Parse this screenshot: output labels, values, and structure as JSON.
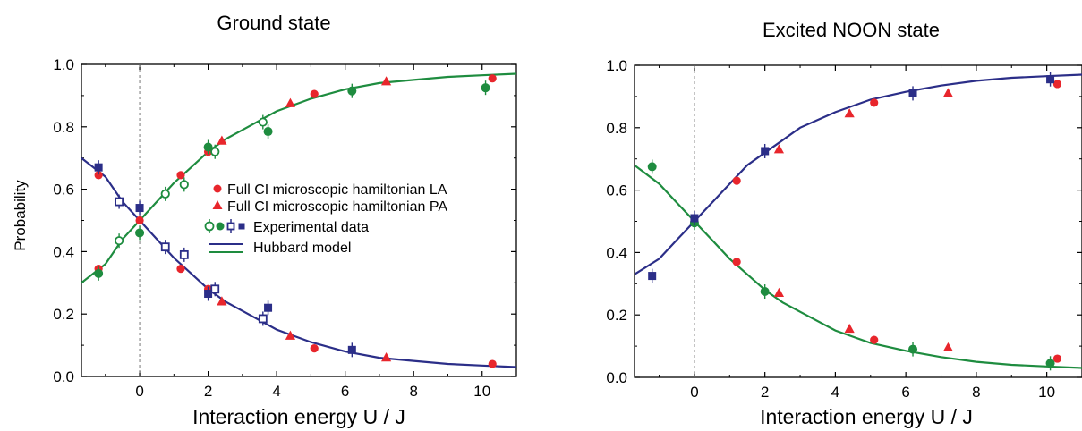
{
  "chart_data": [
    {
      "type": "scatter",
      "title": "Ground state",
      "xlabel": "Interaction energy U / J",
      "ylabel": "Probability",
      "xlim": [
        -1.7,
        11
      ],
      "ylim": [
        0,
        1
      ],
      "x_ticks": [
        "0",
        "2",
        "4",
        "6",
        "8",
        "10"
      ],
      "y_ticks": [
        "0.0",
        "0.2",
        "0.4",
        "0.6",
        "0.8",
        "1.0"
      ],
      "zero_reference_line": true,
      "legend_placement": "center-right",
      "legend": {
        "la": "Full CI microscopic hamiltonian LA",
        "pa": "Full CI microscopic hamiltonian PA",
        "exp": "Experimental data",
        "hub": "Hubbard model"
      },
      "series": [
        {
          "kind": "curve",
          "color": "#2b2e88",
          "role": "decreasing",
          "x": [
            -1.7,
            -1,
            -0.5,
            0,
            0.5,
            1,
            1.5,
            2,
            2.5,
            3,
            4,
            5,
            6,
            7,
            8,
            9,
            10,
            11
          ],
          "y": [
            0.7,
            0.64,
            0.56,
            0.5,
            0.44,
            0.38,
            0.33,
            0.28,
            0.24,
            0.21,
            0.15,
            0.11,
            0.08,
            0.06,
            0.05,
            0.04,
            0.035,
            0.03
          ]
        },
        {
          "kind": "curve",
          "color": "#1e8c3f",
          "role": "increasing",
          "x": [
            -1.7,
            -1,
            -0.5,
            0,
            0.5,
            1,
            1.5,
            2,
            2.5,
            3,
            4,
            5,
            6,
            7,
            8,
            9,
            10,
            11
          ],
          "y": [
            0.3,
            0.36,
            0.44,
            0.5,
            0.56,
            0.62,
            0.67,
            0.72,
            0.76,
            0.79,
            0.85,
            0.89,
            0.92,
            0.94,
            0.95,
            0.96,
            0.965,
            0.97
          ]
        },
        {
          "kind": "markers",
          "marker": "circle",
          "color": "#e8262c",
          "x": [
            -1.2,
            0,
            1.2,
            2,
            5.1,
            10.3
          ],
          "y": [
            0.345,
            0.5,
            0.645,
            0.72,
            0.905,
            0.955
          ]
        },
        {
          "kind": "markers",
          "marker": "circle",
          "color": "#e8262c",
          "x": [
            -1.2,
            1.2,
            2,
            5.1,
            10.3
          ],
          "y": [
            0.645,
            0.345,
            0.28,
            0.09,
            0.04
          ]
        },
        {
          "kind": "markers",
          "marker": "triangle",
          "color": "#e8262c",
          "x": [
            2.4,
            4.4,
            7.2
          ],
          "y": [
            0.755,
            0.875,
            0.945
          ]
        },
        {
          "kind": "markers",
          "marker": "triangle",
          "color": "#e8262c",
          "x": [
            2.4,
            4.4,
            7.2
          ],
          "y": [
            0.24,
            0.13,
            0.06
          ]
        },
        {
          "kind": "markers",
          "marker": "circle-open",
          "color": "#1e8c3f",
          "x": [
            -0.6,
            0.75,
            1.3,
            2.2,
            3.6
          ],
          "y": [
            0.435,
            0.585,
            0.615,
            0.72,
            0.815
          ]
        },
        {
          "kind": "markers",
          "marker": "circle-filled",
          "color": "#1e8c3f",
          "x": [
            -1.2,
            0,
            2,
            3.75,
            6.2,
            10.1
          ],
          "y": [
            0.33,
            0.46,
            0.735,
            0.785,
            0.915,
            0.925
          ]
        },
        {
          "kind": "markers",
          "marker": "square-open",
          "color": "#2b2e88",
          "x": [
            -0.6,
            0.75,
            1.3,
            2.2,
            3.6
          ],
          "y": [
            0.56,
            0.415,
            0.39,
            0.28,
            0.185
          ]
        },
        {
          "kind": "markers",
          "marker": "square-filled",
          "color": "#2b2e88",
          "x": [
            -1.2,
            0,
            2,
            3.75,
            6.2
          ],
          "y": [
            0.67,
            0.54,
            0.265,
            0.22,
            0.085
          ]
        }
      ]
    },
    {
      "type": "scatter",
      "title": "Excited NOON state",
      "xlabel": "Interaction energy U / J",
      "ylabel": "",
      "xlim": [
        -1.7,
        11
      ],
      "ylim": [
        0,
        1
      ],
      "x_ticks": [
        "0",
        "2",
        "4",
        "6",
        "8",
        "10"
      ],
      "y_ticks": [
        "0.0",
        "0.2",
        "0.4",
        "0.6",
        "0.8",
        "1.0"
      ],
      "zero_reference_line": true,
      "series": [
        {
          "kind": "curve",
          "color": "#2b2e88",
          "role": "increasing",
          "x": [
            -1.7,
            -1,
            -0.5,
            0,
            0.5,
            1,
            1.5,
            2,
            2.5,
            3,
            4,
            5,
            6,
            7,
            8,
            9,
            10,
            11
          ],
          "y": [
            0.33,
            0.38,
            0.44,
            0.5,
            0.56,
            0.62,
            0.68,
            0.72,
            0.76,
            0.8,
            0.85,
            0.89,
            0.915,
            0.935,
            0.95,
            0.96,
            0.965,
            0.97
          ]
        },
        {
          "kind": "curve",
          "color": "#1e8c3f",
          "role": "decreasing",
          "x": [
            -1.7,
            -1,
            -0.5,
            0,
            0.5,
            1,
            1.5,
            2,
            2.5,
            3,
            4,
            5,
            6,
            7,
            8,
            9,
            10,
            11
          ],
          "y": [
            0.68,
            0.62,
            0.56,
            0.5,
            0.44,
            0.38,
            0.33,
            0.28,
            0.24,
            0.21,
            0.15,
            0.11,
            0.085,
            0.065,
            0.05,
            0.04,
            0.035,
            0.03
          ]
        },
        {
          "kind": "markers",
          "marker": "circle",
          "color": "#e8262c",
          "x": [
            0,
            1.2,
            5.1,
            10.3
          ],
          "y": [
            0.5,
            0.63,
            0.88,
            0.94
          ]
        },
        {
          "kind": "markers",
          "marker": "circle",
          "color": "#e8262c",
          "x": [
            1.2,
            5.1,
            10.3
          ],
          "y": [
            0.37,
            0.12,
            0.06
          ]
        },
        {
          "kind": "markers",
          "marker": "triangle",
          "color": "#e8262c",
          "x": [
            2.4,
            4.4,
            7.2
          ],
          "y": [
            0.73,
            0.845,
            0.91
          ]
        },
        {
          "kind": "markers",
          "marker": "triangle",
          "color": "#e8262c",
          "x": [
            2.4,
            4.4,
            7.2
          ],
          "y": [
            0.27,
            0.155,
            0.095
          ]
        },
        {
          "kind": "markers",
          "marker": "circle-filled",
          "color": "#1e8c3f",
          "x": [
            -1.2,
            0,
            2,
            6.2,
            10.1
          ],
          "y": [
            0.675,
            0.495,
            0.275,
            0.09,
            0.045
          ]
        },
        {
          "kind": "markers",
          "marker": "square-filled",
          "color": "#2b2e88",
          "x": [
            -1.2,
            0,
            2,
            6.2,
            10.1
          ],
          "y": [
            0.325,
            0.51,
            0.725,
            0.91,
            0.955
          ]
        }
      ]
    }
  ]
}
